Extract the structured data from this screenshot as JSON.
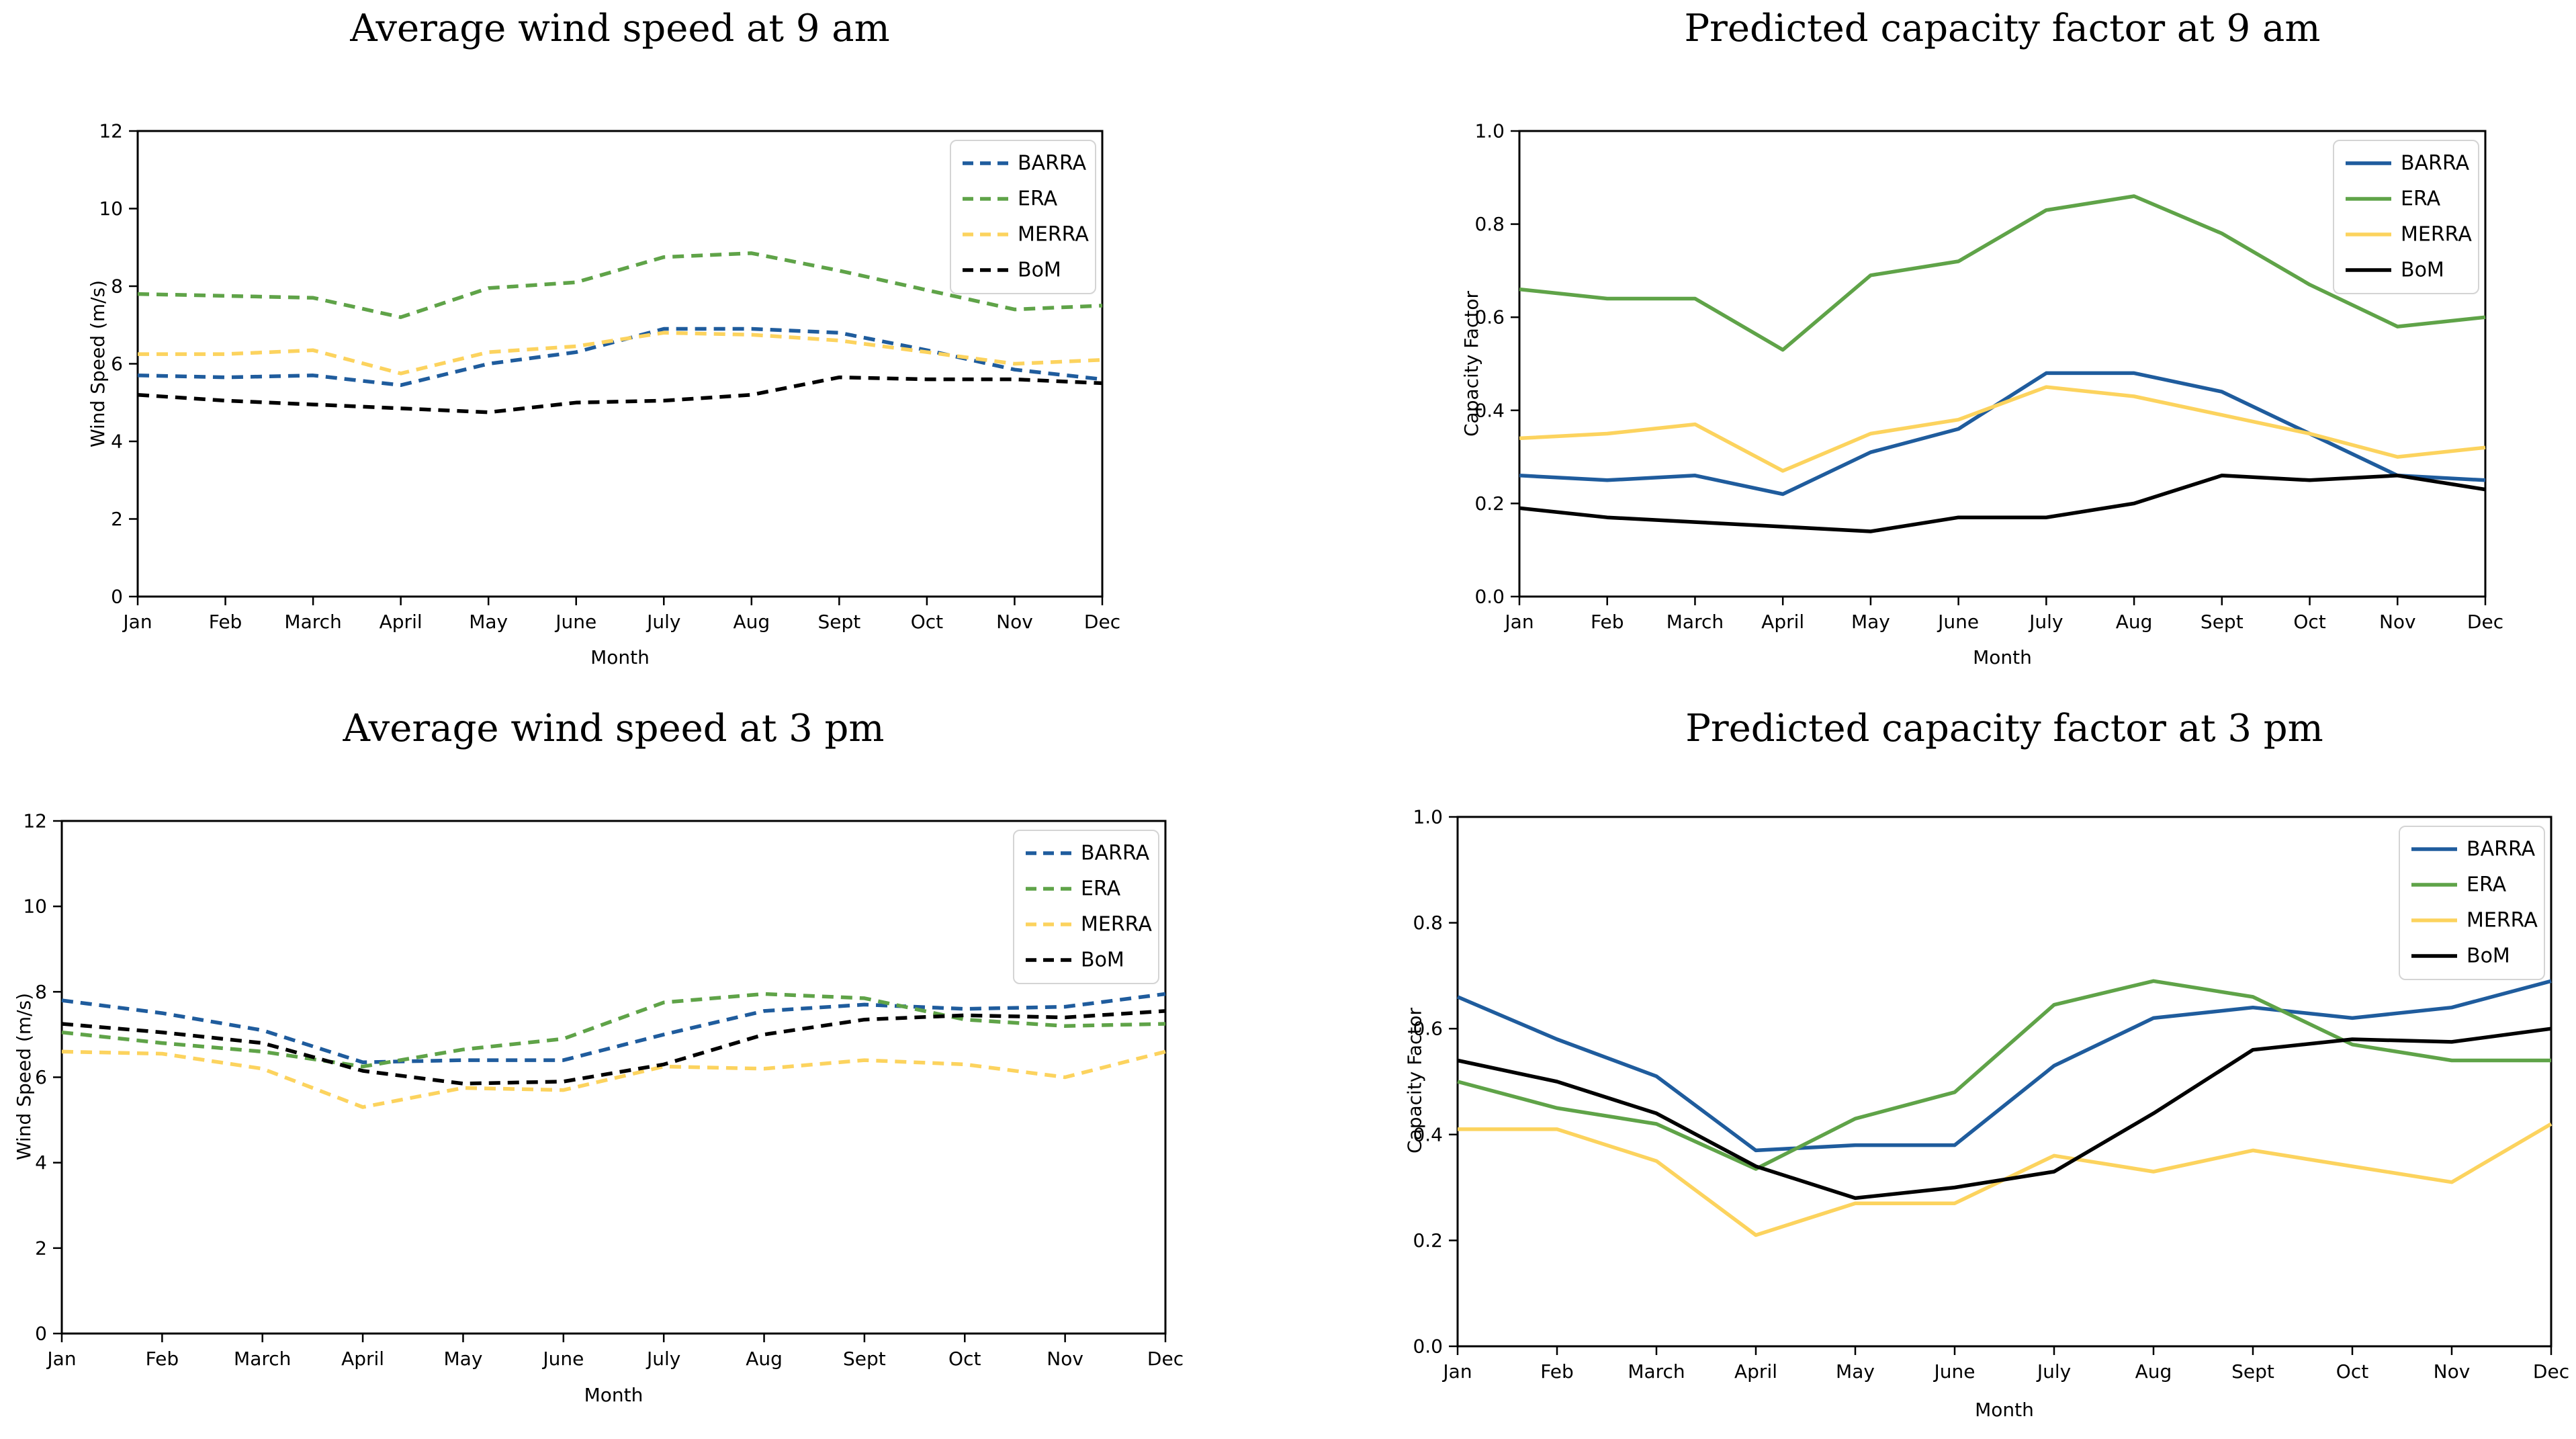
{
  "chart_data": [
    {
      "id": "wind-speed-9am",
      "type": "line",
      "title": "Average wind speed at 9 am",
      "xlabel": "Month",
      "ylabel": "Wind Speed (m/s)",
      "categories": [
        "Jan",
        "Feb",
        "March",
        "April",
        "May",
        "June",
        "July",
        "Aug",
        "Sept",
        "Oct",
        "Nov",
        "Dec"
      ],
      "ylim": [
        0,
        12
      ],
      "ytick_labels": [
        "0",
        "2",
        "4",
        "6",
        "8",
        "10",
        "12"
      ],
      "grid": false,
      "line_style": "dashed",
      "legend_position": "upper-right",
      "series": [
        {
          "name": "BARRA",
          "color": "#1f5c9d",
          "values": [
            5.7,
            5.65,
            5.7,
            5.45,
            6.0,
            6.3,
            6.9,
            6.9,
            6.8,
            6.35,
            5.85,
            5.6
          ]
        },
        {
          "name": "ERA",
          "color": "#5fa348",
          "values": [
            7.8,
            7.75,
            7.7,
            7.2,
            7.95,
            8.1,
            8.75,
            8.85,
            8.4,
            7.9,
            7.4,
            7.5
          ]
        },
        {
          "name": "MERRA",
          "color": "#fcd35e",
          "values": [
            6.25,
            6.25,
            6.35,
            5.75,
            6.3,
            6.45,
            6.8,
            6.75,
            6.6,
            6.3,
            6.0,
            6.1
          ]
        },
        {
          "name": "BoM",
          "color": "#000000",
          "values": [
            5.2,
            5.05,
            4.95,
            4.85,
            4.75,
            5.0,
            5.05,
            5.2,
            5.65,
            5.6,
            5.6,
            5.5
          ]
        }
      ]
    },
    {
      "id": "capacity-factor-9am",
      "type": "line",
      "title": "Predicted capacity factor at 9 am",
      "xlabel": "Month",
      "ylabel": "Capacity Factor",
      "categories": [
        "Jan",
        "Feb",
        "March",
        "April",
        "May",
        "June",
        "July",
        "Aug",
        "Sept",
        "Oct",
        "Nov",
        "Dec"
      ],
      "ylim": [
        0,
        1.0
      ],
      "ytick_labels": [
        "0.0",
        "0.2",
        "0.4",
        "0.6",
        "0.8",
        "1.0"
      ],
      "grid": false,
      "line_style": "solid",
      "legend_position": "upper-right",
      "series": [
        {
          "name": "BARRA",
          "color": "#1f5c9d",
          "values": [
            0.26,
            0.25,
            0.26,
            0.22,
            0.31,
            0.36,
            0.48,
            0.48,
            0.44,
            0.35,
            0.26,
            0.25
          ]
        },
        {
          "name": "ERA",
          "color": "#5fa348",
          "values": [
            0.66,
            0.64,
            0.64,
            0.53,
            0.69,
            0.72,
            0.83,
            0.86,
            0.78,
            0.67,
            0.58,
            0.6
          ]
        },
        {
          "name": "MERRA",
          "color": "#fcd35e",
          "values": [
            0.34,
            0.35,
            0.37,
            0.27,
            0.35,
            0.38,
            0.45,
            0.43,
            0.39,
            0.35,
            0.3,
            0.32
          ]
        },
        {
          "name": "BoM",
          "color": "#000000",
          "values": [
            0.19,
            0.17,
            0.16,
            0.15,
            0.14,
            0.17,
            0.17,
            0.2,
            0.26,
            0.25,
            0.26,
            0.23
          ]
        }
      ]
    },
    {
      "id": "wind-speed-3pm",
      "type": "line",
      "title": "Average wind speed at 3 pm",
      "xlabel": "Month",
      "ylabel": "Wind Speed (m/s)",
      "categories": [
        "Jan",
        "Feb",
        "March",
        "April",
        "May",
        "June",
        "July",
        "Aug",
        "Sept",
        "Oct",
        "Nov",
        "Dec"
      ],
      "ylim": [
        0,
        12
      ],
      "ytick_labels": [
        "0",
        "2",
        "4",
        "6",
        "8",
        "10",
        "12"
      ],
      "grid": false,
      "line_style": "dashed",
      "legend_position": "upper-right",
      "series": [
        {
          "name": "BARRA",
          "color": "#1f5c9d",
          "values": [
            7.8,
            7.5,
            7.1,
            6.35,
            6.4,
            6.4,
            7.0,
            7.55,
            7.7,
            7.6,
            7.65,
            7.95
          ]
        },
        {
          "name": "ERA",
          "color": "#5fa348",
          "values": [
            7.05,
            6.8,
            6.6,
            6.25,
            6.65,
            6.9,
            7.75,
            7.95,
            7.85,
            7.35,
            7.2,
            7.25
          ]
        },
        {
          "name": "MERRA",
          "color": "#fcd35e",
          "values": [
            6.6,
            6.55,
            6.2,
            5.3,
            5.75,
            5.7,
            6.25,
            6.2,
            6.4,
            6.3,
            6.0,
            6.6
          ]
        },
        {
          "name": "BoM",
          "color": "#000000",
          "values": [
            7.25,
            7.05,
            6.8,
            6.15,
            5.85,
            5.9,
            6.3,
            7.0,
            7.35,
            7.45,
            7.4,
            7.55
          ]
        }
      ]
    },
    {
      "id": "capacity-factor-3pm",
      "type": "line",
      "title": "Predicted capacity factor at 3 pm",
      "xlabel": "Month",
      "ylabel": "Capacity Factor",
      "categories": [
        "Jan",
        "Feb",
        "March",
        "April",
        "May",
        "June",
        "July",
        "Aug",
        "Sept",
        "Oct",
        "Nov",
        "Dec"
      ],
      "ylim": [
        0,
        1.0
      ],
      "ytick_labels": [
        "0.0",
        "0.2",
        "0.4",
        "0.6",
        "0.8",
        "1.0"
      ],
      "grid": false,
      "line_style": "solid",
      "legend_position": "upper-right",
      "series": [
        {
          "name": "BARRA",
          "color": "#1f5c9d",
          "values": [
            0.66,
            0.58,
            0.51,
            0.37,
            0.38,
            0.38,
            0.53,
            0.62,
            0.64,
            0.62,
            0.64,
            0.69
          ]
        },
        {
          "name": "ERA",
          "color": "#5fa348",
          "values": [
            0.5,
            0.45,
            0.42,
            0.335,
            0.43,
            0.48,
            0.645,
            0.69,
            0.66,
            0.57,
            0.54,
            0.54
          ]
        },
        {
          "name": "MERRA",
          "color": "#fcd35e",
          "values": [
            0.41,
            0.41,
            0.35,
            0.21,
            0.27,
            0.27,
            0.36,
            0.33,
            0.37,
            0.34,
            0.31,
            0.42
          ]
        },
        {
          "name": "BoM",
          "color": "#000000",
          "values": [
            0.54,
            0.5,
            0.44,
            0.34,
            0.28,
            0.3,
            0.33,
            0.44,
            0.56,
            0.58,
            0.575,
            0.6
          ]
        }
      ]
    }
  ]
}
